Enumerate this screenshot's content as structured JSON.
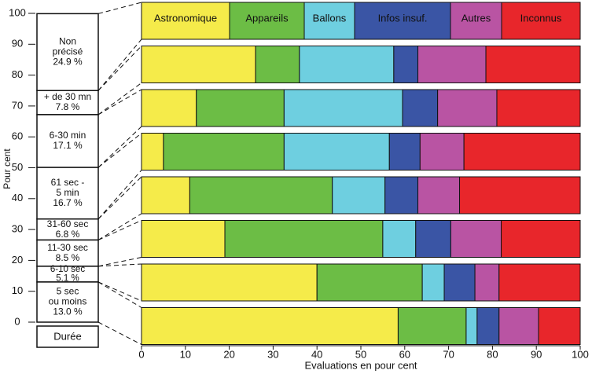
{
  "chart_data": {
    "type": "stacked_barh",
    "ylabel": "Pour cent",
    "xlabel": "Evaluations en pour cent",
    "ylim": [
      0,
      100
    ],
    "yticks": [
      0,
      10,
      20,
      30,
      40,
      50,
      60,
      70,
      80,
      90,
      100
    ],
    "xlim": [
      0,
      100
    ],
    "xticks": [
      0,
      10,
      20,
      30,
      40,
      50,
      60,
      70,
      80,
      90,
      100
    ],
    "duration_title": "Durée",
    "durations": [
      {
        "label": [
          "Non",
          "précisé"
        ],
        "value": 24.9,
        "value_label": "24.9 %"
      },
      {
        "label": [
          "+ de 30 mn"
        ],
        "value": 7.8,
        "value_label": "7.8 %"
      },
      {
        "label": [
          "6-30 min"
        ],
        "value": 17.1,
        "value_label": "17.1 %"
      },
      {
        "label": [
          "61 sec -",
          "5 min"
        ],
        "value": 16.7,
        "value_label": "16.7 %"
      },
      {
        "label": [
          "31-60 sec"
        ],
        "value": 6.8,
        "value_label": "6.8 %"
      },
      {
        "label": [
          "11-30 sec"
        ],
        "value": 8.5,
        "value_label": "8.5 %"
      },
      {
        "label": [
          "6-10 sec"
        ],
        "value": 5.1,
        "value_label": "5.1 %"
      },
      {
        "label": [
          "5 sec",
          "ou moins"
        ],
        "value": 13.0,
        "value_label": "13.0 %"
      }
    ],
    "series": [
      {
        "name": "Astronomique",
        "color": "#f5eb4a",
        "values": [
          26,
          12.5,
          5,
          11,
          19,
          40,
          58.5
        ]
      },
      {
        "name": "Appareils",
        "color": "#6cbd45",
        "values": [
          10,
          20,
          27.5,
          32.5,
          36,
          24,
          15.5
        ]
      },
      {
        "name": "Ballons",
        "color": "#6ecfe0",
        "values": [
          21.5,
          27,
          24,
          12,
          7.5,
          5,
          2.5
        ]
      },
      {
        "name": "Infos insuf.",
        "color": "#3a55a5",
        "values": [
          5.5,
          8,
          7,
          7.5,
          8,
          7,
          5
        ]
      },
      {
        "name": "Autres",
        "color": "#b954a3",
        "values": [
          15.5,
          13.5,
          10,
          9.5,
          11.5,
          5.5,
          9
        ]
      },
      {
        "name": "Inconnus",
        "color": "#e8262b",
        "values": [
          21.5,
          19,
          26.5,
          27.5,
          18,
          18.5,
          9.5
        ]
      }
    ]
  }
}
